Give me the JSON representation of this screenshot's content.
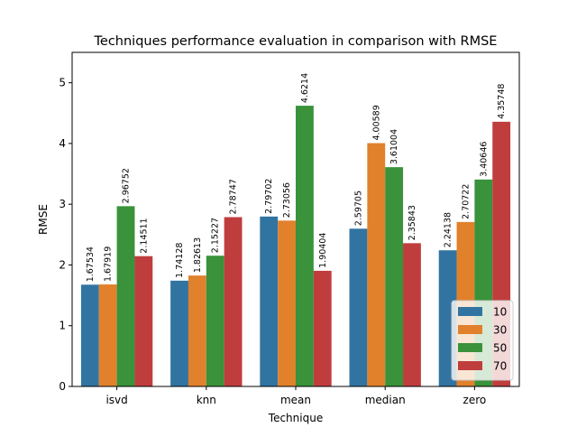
{
  "chart_data": {
    "type": "bar",
    "title": "Techniques performance evaluation in comparison with RMSE",
    "xlabel": "Technique",
    "ylabel": "RMSE",
    "categories": [
      "isvd",
      "knn",
      "mean",
      "median",
      "zero"
    ],
    "ylim": [
      0,
      5.5
    ],
    "yticks": [
      0,
      1,
      2,
      3,
      4,
      5
    ],
    "grid": false,
    "legend_position": "lower-right",
    "series": [
      {
        "name": "10",
        "color": "#3274a1",
        "values": [
          1.67534,
          1.74128,
          2.79702,
          2.59705,
          2.24138
        ],
        "labels": [
          "1.67534",
          "1.74128",
          "2.79702",
          "2.59705",
          "2.24138"
        ]
      },
      {
        "name": "30",
        "color": "#e1812c",
        "values": [
          1.67919,
          1.82613,
          2.73056,
          4.00589,
          2.70722
        ],
        "labels": [
          "1.67919",
          "1.82613",
          "2.73056",
          "4.00589",
          "2.70722"
        ]
      },
      {
        "name": "50",
        "color": "#3a923a",
        "values": [
          2.96752,
          2.15227,
          4.6214,
          3.61004,
          3.40646
        ],
        "labels": [
          "2.96752",
          "2.15227",
          "4.6214",
          "3.61004",
          "3.40646"
        ]
      },
      {
        "name": "70",
        "color": "#c03d3e",
        "values": [
          2.14511,
          2.78747,
          1.90404,
          2.35843,
          4.35748
        ],
        "labels": [
          "2.14511",
          "2.78747",
          "1.90404",
          "2.35843",
          "4.35748"
        ]
      }
    ]
  }
}
